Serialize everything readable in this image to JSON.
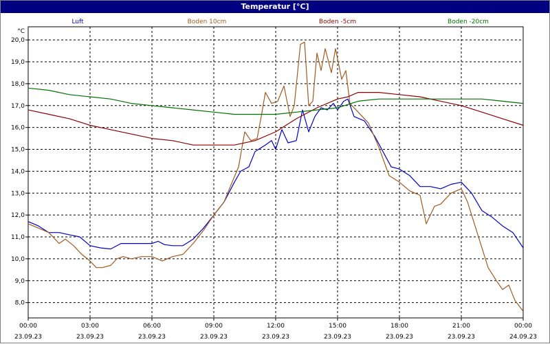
{
  "window": {
    "title": "Temperatur [°C]"
  },
  "chart_data": {
    "type": "line",
    "title": "Temperatur [°C]",
    "ylabel": "°C",
    "ylim": [
      7.3,
      20.6
    ],
    "xlim": [
      0,
      24
    ],
    "grid": true,
    "legend_position": "top",
    "y_ticks": [
      "8,0",
      "9,0",
      "10,0",
      "11,0",
      "12,0",
      "13,0",
      "14,0",
      "15,0",
      "16,0",
      "17,0",
      "18,0",
      "19,0",
      "20,0"
    ],
    "x_ticks": [
      {
        "time": "00:00",
        "date": "23.09.23"
      },
      {
        "time": "03:00",
        "date": "23.09.23"
      },
      {
        "time": "06:00",
        "date": "23.09.23"
      },
      {
        "time": "09:00",
        "date": "23.09.23"
      },
      {
        "time": "12:00",
        "date": "23.09.23"
      },
      {
        "time": "15:00",
        "date": "23.09.23"
      },
      {
        "time": "18:00",
        "date": "23.09.23"
      },
      {
        "time": "21:00",
        "date": "23.09.23"
      },
      {
        "time": "00:00",
        "date": "24.09.23"
      }
    ],
    "series": [
      {
        "name": "Luft",
        "color": "#0000cc",
        "points": [
          [
            0,
            11.7
          ],
          [
            0.5,
            11.5
          ],
          [
            1,
            11.2
          ],
          [
            1.5,
            11.2
          ],
          [
            2,
            11.1
          ],
          [
            2.5,
            11.0
          ],
          [
            3,
            10.6
          ],
          [
            3.5,
            10.5
          ],
          [
            4,
            10.45
          ],
          [
            4.5,
            10.7
          ],
          [
            5,
            10.7
          ],
          [
            5.5,
            10.7
          ],
          [
            6,
            10.7
          ],
          [
            6.3,
            10.8
          ],
          [
            6.6,
            10.65
          ],
          [
            7,
            10.6
          ],
          [
            7.5,
            10.6
          ],
          [
            8,
            10.9
          ],
          [
            8.5,
            11.4
          ],
          [
            9,
            12.0
          ],
          [
            9.5,
            12.6
          ],
          [
            10,
            13.5
          ],
          [
            10.3,
            14.0
          ],
          [
            10.7,
            14.2
          ],
          [
            11,
            14.9
          ],
          [
            11.5,
            15.2
          ],
          [
            11.8,
            15.4
          ],
          [
            12,
            15.0
          ],
          [
            12.3,
            15.9
          ],
          [
            12.6,
            15.3
          ],
          [
            13,
            15.4
          ],
          [
            13.3,
            16.8
          ],
          [
            13.6,
            15.8
          ],
          [
            13.9,
            16.5
          ],
          [
            14.2,
            16.9
          ],
          [
            14.5,
            16.8
          ],
          [
            14.8,
            17.1
          ],
          [
            15,
            16.8
          ],
          [
            15.3,
            17.2
          ],
          [
            15.5,
            17.3
          ],
          [
            15.8,
            16.5
          ],
          [
            16.3,
            16.3
          ],
          [
            16.8,
            15.6
          ],
          [
            17.2,
            14.9
          ],
          [
            17.6,
            14.2
          ],
          [
            18,
            14.1
          ],
          [
            18.5,
            13.8
          ],
          [
            19,
            13.3
          ],
          [
            19.5,
            13.3
          ],
          [
            20,
            13.2
          ],
          [
            20.5,
            13.4
          ],
          [
            21,
            13.5
          ],
          [
            21.5,
            13.0
          ],
          [
            22,
            12.2
          ],
          [
            22.5,
            11.9
          ],
          [
            23,
            11.5
          ],
          [
            23.5,
            11.2
          ],
          [
            24,
            10.5
          ]
        ]
      },
      {
        "name": "Boden 10cm",
        "color": "#a05a1e",
        "points": [
          [
            0,
            11.6
          ],
          [
            0.5,
            11.4
          ],
          [
            1,
            11.2
          ],
          [
            1.5,
            10.7
          ],
          [
            1.8,
            10.9
          ],
          [
            2.2,
            10.6
          ],
          [
            2.6,
            10.2
          ],
          [
            3,
            9.9
          ],
          [
            3.3,
            9.6
          ],
          [
            3.6,
            9.6
          ],
          [
            4,
            9.7
          ],
          [
            4.3,
            10.0
          ],
          [
            4.6,
            10.1
          ],
          [
            5,
            10.0
          ],
          [
            5.5,
            10.1
          ],
          [
            6,
            10.1
          ],
          [
            6.5,
            9.9
          ],
          [
            7,
            10.1
          ],
          [
            7.5,
            10.2
          ],
          [
            8,
            10.7
          ],
          [
            8.5,
            11.3
          ],
          [
            9,
            12.0
          ],
          [
            9.5,
            12.6
          ],
          [
            9.8,
            13.3
          ],
          [
            10.2,
            14.2
          ],
          [
            10.5,
            15.8
          ],
          [
            10.8,
            15.4
          ],
          [
            11.1,
            15.5
          ],
          [
            11.3,
            16.5
          ],
          [
            11.5,
            17.6
          ],
          [
            11.8,
            17.1
          ],
          [
            12.1,
            17.2
          ],
          [
            12.4,
            17.9
          ],
          [
            12.7,
            16.5
          ],
          [
            12.9,
            17.0
          ],
          [
            13.2,
            19.8
          ],
          [
            13.4,
            19.9
          ],
          [
            13.6,
            17.0
          ],
          [
            13.8,
            17.2
          ],
          [
            14.0,
            19.4
          ],
          [
            14.2,
            18.6
          ],
          [
            14.4,
            19.6
          ],
          [
            14.7,
            18.5
          ],
          [
            14.9,
            19.6
          ],
          [
            15.2,
            18.2
          ],
          [
            15.4,
            18.6
          ],
          [
            15.6,
            17.1
          ],
          [
            16,
            16.7
          ],
          [
            16.5,
            16.2
          ],
          [
            17,
            15.1
          ],
          [
            17.5,
            13.8
          ],
          [
            18,
            13.5
          ],
          [
            18.5,
            13.1
          ],
          [
            19,
            12.9
          ],
          [
            19.3,
            11.6
          ],
          [
            19.7,
            12.4
          ],
          [
            20,
            12.5
          ],
          [
            20.5,
            13.0
          ],
          [
            21,
            13.2
          ],
          [
            21.3,
            12.6
          ],
          [
            21.7,
            11.4
          ],
          [
            22,
            10.5
          ],
          [
            22.3,
            9.6
          ],
          [
            22.7,
            9.0
          ],
          [
            23,
            8.6
          ],
          [
            23.3,
            8.8
          ],
          [
            23.6,
            8.1
          ],
          [
            24,
            7.6
          ]
        ]
      },
      {
        "name": "Boden -5cm",
        "color": "#8b0000",
        "points": [
          [
            0,
            16.8
          ],
          [
            1,
            16.6
          ],
          [
            2,
            16.4
          ],
          [
            3,
            16.1
          ],
          [
            4,
            15.9
          ],
          [
            5,
            15.7
          ],
          [
            6,
            15.5
          ],
          [
            7,
            15.4
          ],
          [
            8,
            15.2
          ],
          [
            9,
            15.2
          ],
          [
            10,
            15.2
          ],
          [
            11,
            15.4
          ],
          [
            12,
            15.8
          ],
          [
            13,
            16.4
          ],
          [
            14,
            16.9
          ],
          [
            15,
            17.3
          ],
          [
            15.5,
            17.4
          ],
          [
            16,
            17.6
          ],
          [
            17,
            17.6
          ],
          [
            18,
            17.5
          ],
          [
            19,
            17.4
          ],
          [
            20,
            17.2
          ],
          [
            21,
            17.0
          ],
          [
            22,
            16.7
          ],
          [
            23,
            16.4
          ],
          [
            24,
            16.1
          ]
        ]
      },
      {
        "name": "Boden -20cm",
        "color": "#007000",
        "points": [
          [
            0,
            17.8
          ],
          [
            1,
            17.7
          ],
          [
            2,
            17.5
          ],
          [
            3,
            17.4
          ],
          [
            4,
            17.3
          ],
          [
            5,
            17.1
          ],
          [
            6,
            17.0
          ],
          [
            7,
            16.9
          ],
          [
            8,
            16.8
          ],
          [
            9,
            16.7
          ],
          [
            10,
            16.6
          ],
          [
            11,
            16.6
          ],
          [
            12,
            16.6
          ],
          [
            13,
            16.7
          ],
          [
            14,
            16.8
          ],
          [
            15,
            16.9
          ],
          [
            16,
            17.2
          ],
          [
            17,
            17.3
          ],
          [
            18,
            17.3
          ],
          [
            19,
            17.3
          ],
          [
            20,
            17.3
          ],
          [
            21,
            17.3
          ],
          [
            22,
            17.3
          ],
          [
            23,
            17.2
          ],
          [
            24,
            17.1
          ]
        ]
      }
    ]
  }
}
